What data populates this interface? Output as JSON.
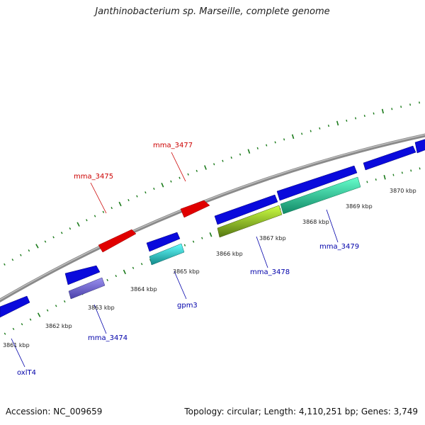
{
  "title": "Janthinobacterium sp. Marseille, complete genome",
  "footer": {
    "accession": "Accession: NC_009659",
    "topology": "Topology: circular; Length: 4,110,251 bp; Genes: 3,749"
  },
  "colors": {
    "backbone": "#8c8c8c",
    "tick": "#1a7a1a",
    "reverse_label": "#cc0000",
    "forward_label": "#0000aa",
    "gene_blue": "#0a0adc",
    "gene_red": "#e00000",
    "gene_cyan": "#22cccc",
    "gene_lightgreen": "#99dd22",
    "gene_mint": "#22eea0",
    "gene_lavender": "#6a60cc"
  },
  "scale_ticks": [
    {
      "label": "3861 kbp",
      "pos_kbp": 3861
    },
    {
      "label": "3862 kbp",
      "pos_kbp": 3862
    },
    {
      "label": "3863 kbp",
      "pos_kbp": 3863
    },
    {
      "label": "3864 kbp",
      "pos_kbp": 3864
    },
    {
      "label": "3865 kbp",
      "pos_kbp": 3865
    },
    {
      "label": "3866 kbp",
      "pos_kbp": 3866
    },
    {
      "label": "3867 kbp",
      "pos_kbp": 3867
    },
    {
      "label": "3868 kbp",
      "pos_kbp": 3868
    },
    {
      "label": "3869 kbp",
      "pos_kbp": 3869
    },
    {
      "label": "3870 kbp",
      "pos_kbp": 3870
    }
  ],
  "gene_labels": [
    {
      "name": "mma_3477",
      "strand": "reverse"
    },
    {
      "name": "mma_3475",
      "strand": "reverse"
    },
    {
      "name": "mma_3479",
      "strand": "forward"
    },
    {
      "name": "mma_3478",
      "strand": "forward"
    },
    {
      "name": "gpm3",
      "strand": "forward"
    },
    {
      "name": "mma_3474",
      "strand": "forward"
    },
    {
      "name": "oxlT4",
      "strand": "forward"
    }
  ]
}
